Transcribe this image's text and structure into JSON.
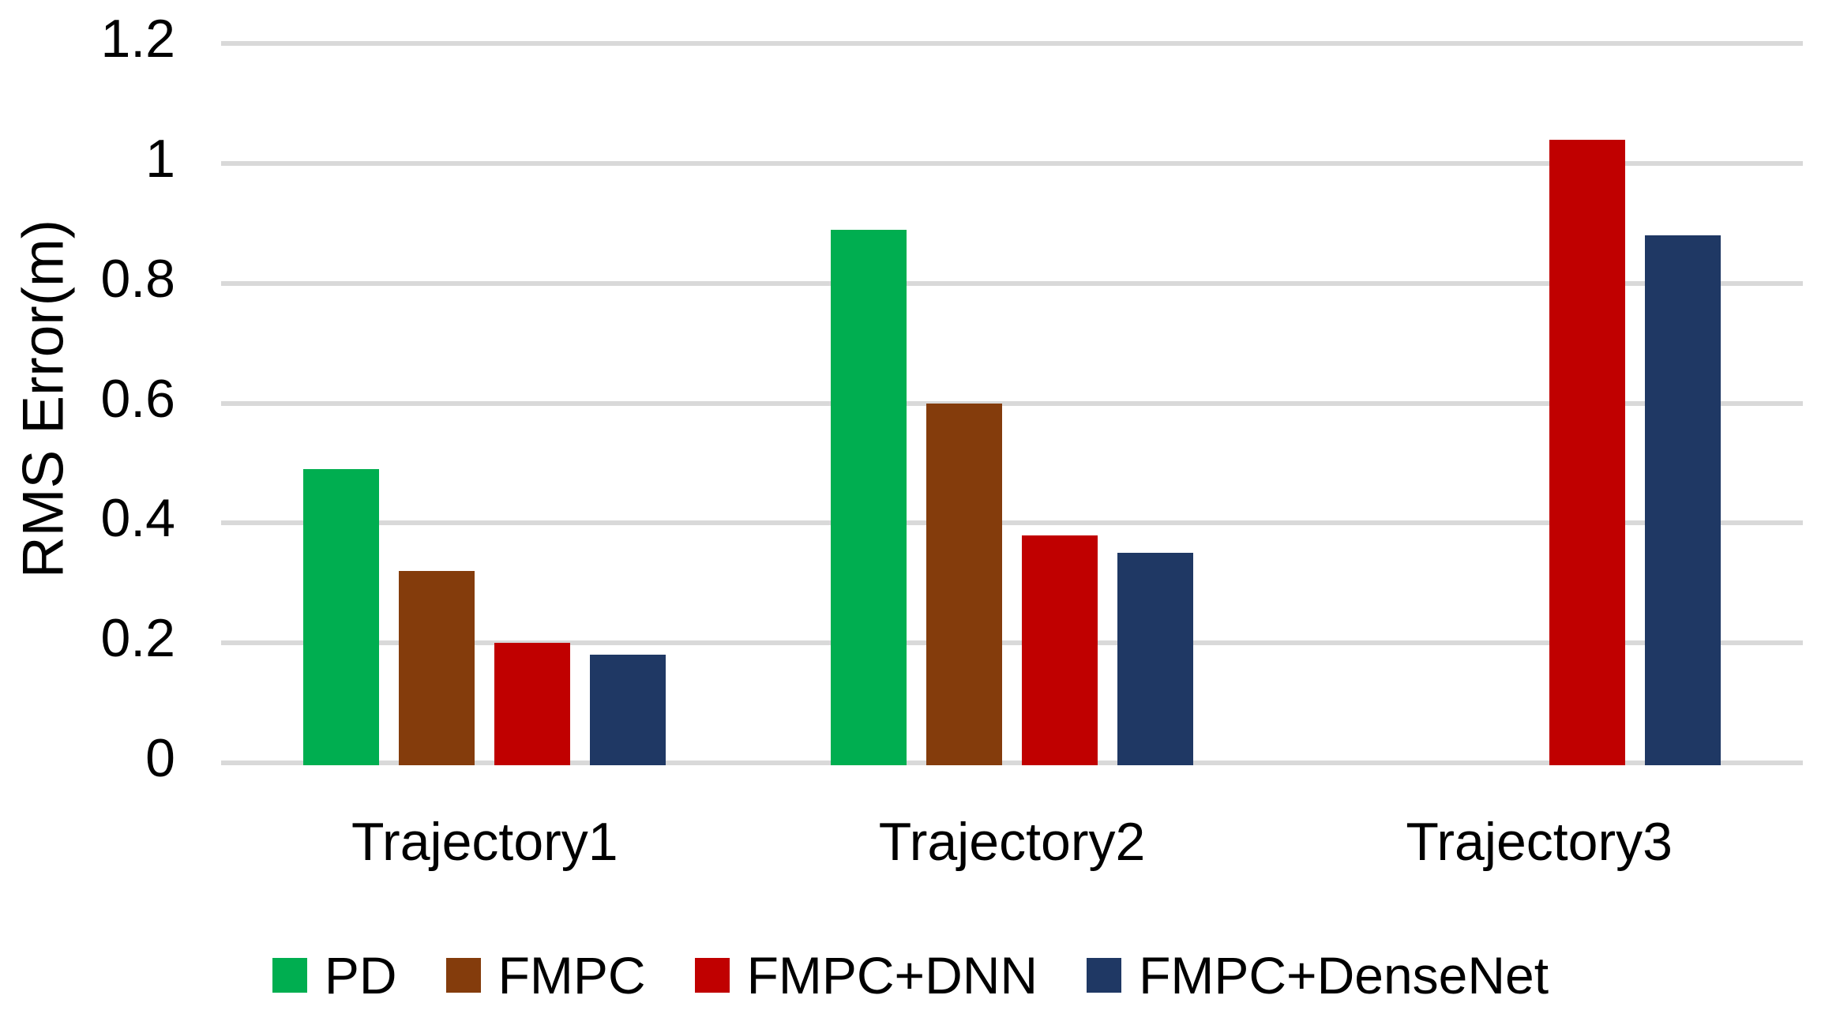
{
  "chart_data": {
    "type": "bar",
    "title": "",
    "categories": [
      "Trajectory1",
      "Trajectory2",
      "Trajectory3"
    ],
    "series": [
      {
        "name": "PD",
        "color": "#00AE50",
        "values": [
          0.49,
          0.89,
          null
        ]
      },
      {
        "name": "FMPC",
        "color": "#843C0C",
        "values": [
          0.32,
          0.6,
          null
        ]
      },
      {
        "name": "FMPC+DNN",
        "color": "#C00000",
        "values": [
          0.2,
          0.38,
          1.04
        ]
      },
      {
        "name": "FMPC+DenseNet",
        "color": "#1F3864",
        "values": [
          0.18,
          0.35,
          0.88
        ]
      }
    ],
    "xlabel": "",
    "ylabel": "RMS Error(m)",
    "ylim": [
      0,
      1.2
    ],
    "ytick_interval": 0.2,
    "yticks": [
      {
        "value": 0,
        "label": "0"
      },
      {
        "value": 0.2,
        "label": "0.2"
      },
      {
        "value": 0.4,
        "label": "0.4"
      },
      {
        "value": 0.6,
        "label": "0.6"
      },
      {
        "value": 0.8,
        "label": "0.8"
      },
      {
        "value": 1,
        "label": "1"
      },
      {
        "value": 1.2,
        "label": "1.2"
      }
    ],
    "grid": "horizontal",
    "gridline_color": "#D9D9D9",
    "legend_position": "bottom",
    "text_color": "#000000",
    "background_color": "#FFFFFF"
  }
}
